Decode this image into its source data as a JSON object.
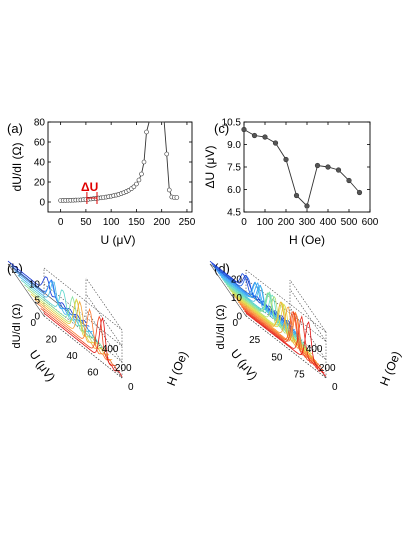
{
  "chart_data": [
    {
      "panel": "(a)",
      "type": "scatter",
      "xlabel": "U (μV)",
      "ylabel": "dU/dI (Ω)",
      "xlim": [
        -25,
        260
      ],
      "ylim": [
        -10,
        80
      ],
      "xticks": [
        0,
        50,
        100,
        150,
        200,
        250
      ],
      "yticks": [
        0,
        20,
        40,
        60,
        80
      ],
      "annotation": {
        "text": "ΔU",
        "x_from": 52,
        "x_to": 72,
        "color": "#e00000"
      },
      "series": [
        {
          "x": [
            0,
            5,
            10,
            15,
            20,
            25,
            30,
            35,
            40,
            45,
            50,
            55,
            60,
            65,
            70,
            75,
            80,
            85,
            90,
            95,
            100,
            105,
            110,
            115,
            120,
            125,
            130,
            135,
            140,
            145,
            150,
            155,
            160,
            165,
            170,
            175,
            200,
            205,
            210,
            215,
            220,
            225,
            230
          ],
          "y": [
            1.5,
            1.6,
            1.6,
            1.7,
            1.7,
            1.8,
            1.9,
            2.0,
            2.1,
            2.3,
            2.5,
            2.7,
            3.0,
            3.3,
            3.6,
            3.9,
            4.2,
            4.5,
            4.9,
            5.3,
            5.8,
            6.3,
            6.9,
            7.6,
            8.4,
            9.3,
            10.4,
            11.7,
            13.3,
            15.2,
            18,
            22,
            28,
            40,
            70,
            80,
            80,
            80,
            48,
            12,
            5,
            4.5,
            4.5
          ]
        }
      ]
    },
    {
      "panel": "(c)",
      "type": "line",
      "xlabel": "H (Oe)",
      "ylabel": "ΔU (μV)",
      "xlim": [
        0,
        600
      ],
      "ylim": [
        4.5,
        10.5
      ],
      "xticks": [
        0,
        100,
        200,
        300,
        400,
        500,
        600
      ],
      "yticks": [
        4.5,
        6.0,
        7.5,
        9.0,
        10.5
      ],
      "series": [
        {
          "x": [
            0,
            50,
            100,
            150,
            200,
            250,
            300,
            350,
            400,
            450,
            500,
            550
          ],
          "y": [
            10.0,
            9.6,
            9.5,
            9.1,
            8.0,
            5.6,
            4.9,
            7.6,
            7.5,
            7.3,
            6.6,
            5.8
          ]
        }
      ]
    },
    {
      "panel": "(b)",
      "type": "line3d",
      "xlabel": "U (μV)",
      "ylabel": "H (Oe)",
      "zlabel": "dU/dI (Ω)",
      "uticks": [
        0,
        20,
        40,
        60
      ],
      "hticks": [
        0,
        200,
        400
      ],
      "zticks": [
        0,
        5,
        10
      ],
      "urange": [
        0,
        75
      ],
      "hrange": [
        0,
        550
      ],
      "zrange": [
        0,
        15
      ],
      "curves": 12,
      "color_scale": [
        "#1030d0",
        "#30a0ff",
        "#60e0c0",
        "#e0e040",
        "#ff8030",
        "#e01010"
      ]
    },
    {
      "panel": "(d)",
      "type": "line3d",
      "xlabel": "U (μV)",
      "ylabel": "H (Oe)",
      "zlabel": "dU/dI (Ω)",
      "uticks": [
        0,
        25,
        50,
        75
      ],
      "hticks": [
        0,
        200,
        400
      ],
      "zticks": [
        0,
        10,
        20
      ],
      "urange": [
        0,
        90
      ],
      "hrange": [
        0,
        550
      ],
      "zrange": [
        0,
        25
      ],
      "curves": 24,
      "color_scale": [
        "#1030d0",
        "#30a0ff",
        "#60e0c0",
        "#e0e040",
        "#ff8030",
        "#e01010"
      ]
    }
  ]
}
